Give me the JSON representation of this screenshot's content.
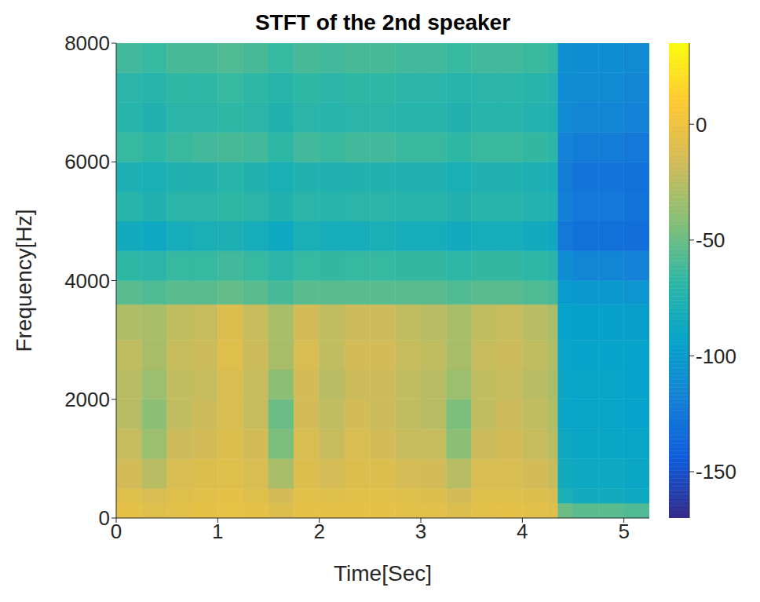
{
  "chart_data": {
    "type": "heatmap",
    "title": "STFT of the 2nd speaker",
    "xlabel": "Time[Sec]",
    "ylabel": "Frequency[Hz]",
    "xlim": [
      0,
      5.25
    ],
    "xticks": [
      0,
      1,
      2,
      3,
      4,
      5
    ],
    "ylim": [
      0,
      8000
    ],
    "yticks": [
      0,
      2000,
      4000,
      6000,
      8000
    ],
    "grid": false,
    "colorbar_lim": [
      -170,
      35
    ],
    "colorbar_ticks": [
      -150,
      -100,
      -50,
      0
    ],
    "time_bins": [
      0,
      0.25,
      0.5,
      0.75,
      1,
      1.25,
      1.5,
      1.75,
      2,
      2.25,
      2.5,
      2.75,
      3,
      3.25,
      3.5,
      3.75,
      4,
      4.25,
      4.35,
      4.5,
      4.75,
      5,
      5.25
    ],
    "freq_bins": [
      0,
      250,
      500,
      1000,
      1500,
      2000,
      2500,
      3000,
      3600,
      4000,
      4500,
      5000,
      5500,
      6000,
      6500,
      7000,
      7500,
      8000
    ],
    "cells": [
      [
        -5,
        -8,
        -6,
        -4,
        -3,
        -5,
        -10,
        -4,
        -5,
        -4,
        -5,
        -6,
        -6,
        -10,
        -6,
        -5,
        -6,
        -8,
        -50,
        -55,
        -55,
        -58
      ],
      [
        -8,
        -12,
        -8,
        -6,
        -5,
        -8,
        -15,
        -6,
        -8,
        -6,
        -6,
        -8,
        -10,
        -15,
        -8,
        -8,
        -10,
        -12,
        -80,
        -85,
        -85,
        -88
      ],
      [
        -15,
        -25,
        -12,
        -10,
        -8,
        -12,
        -30,
        -10,
        -14,
        -10,
        -10,
        -14,
        -15,
        -25,
        -12,
        -12,
        -15,
        -20,
        -85,
        -88,
        -88,
        -90
      ],
      [
        -20,
        -35,
        -18,
        -15,
        -10,
        -15,
        -45,
        -12,
        -20,
        -12,
        -15,
        -20,
        -20,
        -40,
        -18,
        -15,
        -20,
        -25,
        -88,
        -90,
        -90,
        -92
      ],
      [
        -25,
        -40,
        -22,
        -18,
        -12,
        -20,
        -50,
        -15,
        -22,
        -15,
        -18,
        -22,
        -25,
        -45,
        -22,
        -18,
        -22,
        -28,
        -90,
        -92,
        -92,
        -93
      ],
      [
        -25,
        -35,
        -22,
        -20,
        -12,
        -20,
        -40,
        -15,
        -25,
        -18,
        -18,
        -22,
        -25,
        -35,
        -22,
        -20,
        -25,
        -30,
        -90,
        -92,
        -92,
        -93
      ],
      [
        -22,
        -30,
        -20,
        -18,
        -8,
        -18,
        -30,
        -12,
        -22,
        -15,
        -15,
        -20,
        -22,
        -30,
        -20,
        -18,
        -22,
        -28,
        -92,
        -93,
        -93,
        -94
      ],
      [
        -28,
        -30,
        -22,
        -20,
        -10,
        -20,
        -30,
        -15,
        -22,
        -18,
        -18,
        -22,
        -25,
        -30,
        -22,
        -20,
        -25,
        -30,
        -94,
        -95,
        -95,
        -96
      ],
      [
        -55,
        -58,
        -55,
        -55,
        -52,
        -55,
        -60,
        -55,
        -55,
        -55,
        -55,
        -55,
        -55,
        -58,
        -55,
        -55,
        -58,
        -60,
        -100,
        -102,
        -102,
        -104
      ],
      [
        -68,
        -70,
        -65,
        -65,
        -62,
        -65,
        -70,
        -65,
        -66,
        -65,
        -65,
        -66,
        -66,
        -68,
        -66,
        -66,
        -68,
        -70,
        -110,
        -115,
        -115,
        -118
      ],
      [
        -85,
        -88,
        -82,
        -80,
        -78,
        -82,
        -88,
        -80,
        -82,
        -82,
        -80,
        -82,
        -82,
        -85,
        -82,
        -82,
        -85,
        -88,
        -125,
        -130,
        -130,
        -132
      ],
      [
        -72,
        -75,
        -70,
        -70,
        -68,
        -70,
        -75,
        -70,
        -72,
        -70,
        -70,
        -72,
        -72,
        -75,
        -72,
        -72,
        -74,
        -76,
        -120,
        -125,
        -125,
        -128
      ],
      [
        -78,
        -80,
        -76,
        -75,
        -72,
        -75,
        -80,
        -75,
        -76,
        -75,
        -75,
        -76,
        -76,
        -80,
        -76,
        -76,
        -78,
        -80,
        -122,
        -128,
        -128,
        -130
      ],
      [
        -65,
        -68,
        -64,
        -62,
        -60,
        -62,
        -68,
        -62,
        -64,
        -62,
        -62,
        -64,
        -64,
        -68,
        -64,
        -64,
        -66,
        -68,
        -118,
        -122,
        -122,
        -125
      ],
      [
        -72,
        -75,
        -70,
        -70,
        -68,
        -70,
        -75,
        -70,
        -72,
        -70,
        -70,
        -72,
        -72,
        -75,
        -72,
        -72,
        -74,
        -76,
        -112,
        -115,
        -115,
        -118
      ],
      [
        -70,
        -72,
        -68,
        -68,
        -65,
        -68,
        -72,
        -68,
        -70,
        -68,
        -68,
        -70,
        -70,
        -72,
        -70,
        -70,
        -72,
        -74,
        -110,
        -112,
        -112,
        -115
      ],
      [
        -62,
        -65,
        -60,
        -60,
        -58,
        -60,
        -65,
        -60,
        -62,
        -60,
        -60,
        -62,
        -62,
        -65,
        -62,
        -62,
        -64,
        -66,
        -108,
        -110,
        -110,
        -112
      ]
    ]
  }
}
